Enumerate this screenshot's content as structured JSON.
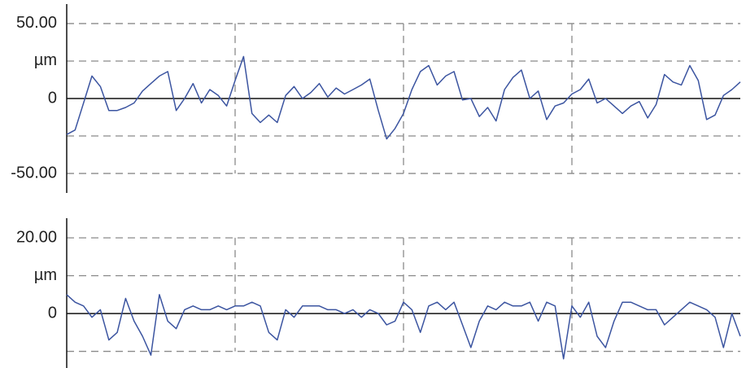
{
  "chart_data": [
    {
      "type": "line",
      "y_label": "µm",
      "color": "#3b54a0",
      "x": [
        0,
        0.05,
        0.1,
        0.15,
        0.2,
        0.25,
        0.3,
        0.35,
        0.4,
        0.45,
        0.5,
        0.55,
        0.6,
        0.65,
        0.7,
        0.75,
        0.8,
        0.85,
        0.9,
        0.95,
        1,
        1.05,
        1.1,
        1.15,
        1.2,
        1.25,
        1.3,
        1.35,
        1.4,
        1.45,
        1.5,
        1.55,
        1.6,
        1.65,
        1.7,
        1.75,
        1.8,
        1.85,
        1.9,
        1.95,
        2,
        2.05,
        2.1,
        2.15,
        2.2,
        2.25,
        2.3,
        2.35,
        2.4,
        2.45,
        2.5,
        2.55,
        2.6,
        2.65,
        2.7,
        2.75,
        2.8,
        2.85,
        2.9,
        2.95,
        3,
        3.05,
        3.1,
        3.15,
        3.2,
        3.25,
        3.3,
        3.35,
        3.4,
        3.45,
        3.5,
        3.55,
        3.6,
        3.65,
        3.7,
        3.75,
        3.8,
        3.85,
        3.9,
        3.95,
        4
      ],
      "values": [
        -24,
        -21,
        -3,
        15,
        8,
        -8,
        -8,
        -6,
        -3,
        5,
        10,
        15,
        18,
        -8,
        0,
        10,
        -3,
        6,
        2,
        -5,
        12,
        28,
        -10,
        -16,
        -11,
        -16,
        2,
        8,
        0,
        4,
        10,
        1,
        7,
        3,
        6,
        9,
        13,
        -8,
        -27,
        -20,
        -10,
        6,
        18,
        22,
        9,
        15,
        18,
        -1,
        0,
        -12,
        -6,
        -15,
        6,
        14,
        19,
        0,
        5,
        -14,
        -5,
        -3,
        3,
        6,
        13,
        -3,
        0,
        -5,
        -10,
        -5,
        -2,
        -13,
        -4,
        16,
        11,
        9,
        22,
        12,
        -14,
        -11,
        2,
        6,
        11
      ],
      "xlim": [
        0,
        4
      ],
      "xgrid": [
        1,
        2,
        3
      ],
      "ylim": [
        -63,
        63
      ],
      "yticks": [
        {
          "value": 50,
          "label": "50.00"
        },
        0,
        {
          "value": -50,
          "label": "-50.00"
        }
      ],
      "ygrid": [
        50,
        25,
        -25,
        -50
      ]
    },
    {
      "type": "line",
      "y_label": "µm",
      "color": "#3b54a0",
      "x": [
        0,
        0.05,
        0.1,
        0.15,
        0.2,
        0.25,
        0.3,
        0.35,
        0.4,
        0.45,
        0.5,
        0.55,
        0.6,
        0.65,
        0.7,
        0.75,
        0.8,
        0.85,
        0.9,
        0.95,
        1,
        1.05,
        1.1,
        1.15,
        1.2,
        1.25,
        1.3,
        1.35,
        1.4,
        1.45,
        1.5,
        1.55,
        1.6,
        1.65,
        1.7,
        1.75,
        1.8,
        1.85,
        1.9,
        1.95,
        2,
        2.05,
        2.1,
        2.15,
        2.2,
        2.25,
        2.3,
        2.35,
        2.4,
        2.45,
        2.5,
        2.55,
        2.6,
        2.65,
        2.7,
        2.75,
        2.8,
        2.85,
        2.9,
        2.95,
        3,
        3.05,
        3.1,
        3.15,
        3.2,
        3.25,
        3.3,
        3.35,
        3.4,
        3.45,
        3.5,
        3.55,
        3.6,
        3.65,
        3.7,
        3.75,
        3.8,
        3.85,
        3.9,
        3.95,
        4
      ],
      "values": [
        5,
        3,
        2,
        -1,
        1,
        -7,
        -5,
        4,
        -2,
        -6,
        -11,
        5,
        -2,
        -4,
        1,
        2,
        1,
        1,
        2,
        1,
        2,
        2,
        3,
        2,
        -5,
        -7,
        1,
        -1,
        2,
        2,
        2,
        1,
        1,
        0,
        1,
        -1,
        1,
        0,
        -3,
        -2,
        3,
        1,
        -5,
        2,
        3,
        1,
        3,
        -3,
        -9,
        -2,
        2,
        1,
        3,
        2,
        2,
        3,
        -2,
        3,
        2,
        -12,
        2,
        -1,
        3,
        -6,
        -9,
        -2,
        3,
        3,
        2,
        1,
        1,
        -3,
        -1,
        1,
        3,
        2,
        1,
        -1,
        -9,
        0,
        -6
      ],
      "xlim": [
        0,
        4
      ],
      "xgrid": [
        1,
        2,
        3
      ],
      "ylim": [
        -14.4,
        25.2
      ],
      "yticks": [
        {
          "value": 20,
          "label": "20.00"
        },
        0
      ],
      "ygrid": [
        20,
        10,
        -10
      ]
    }
  ]
}
